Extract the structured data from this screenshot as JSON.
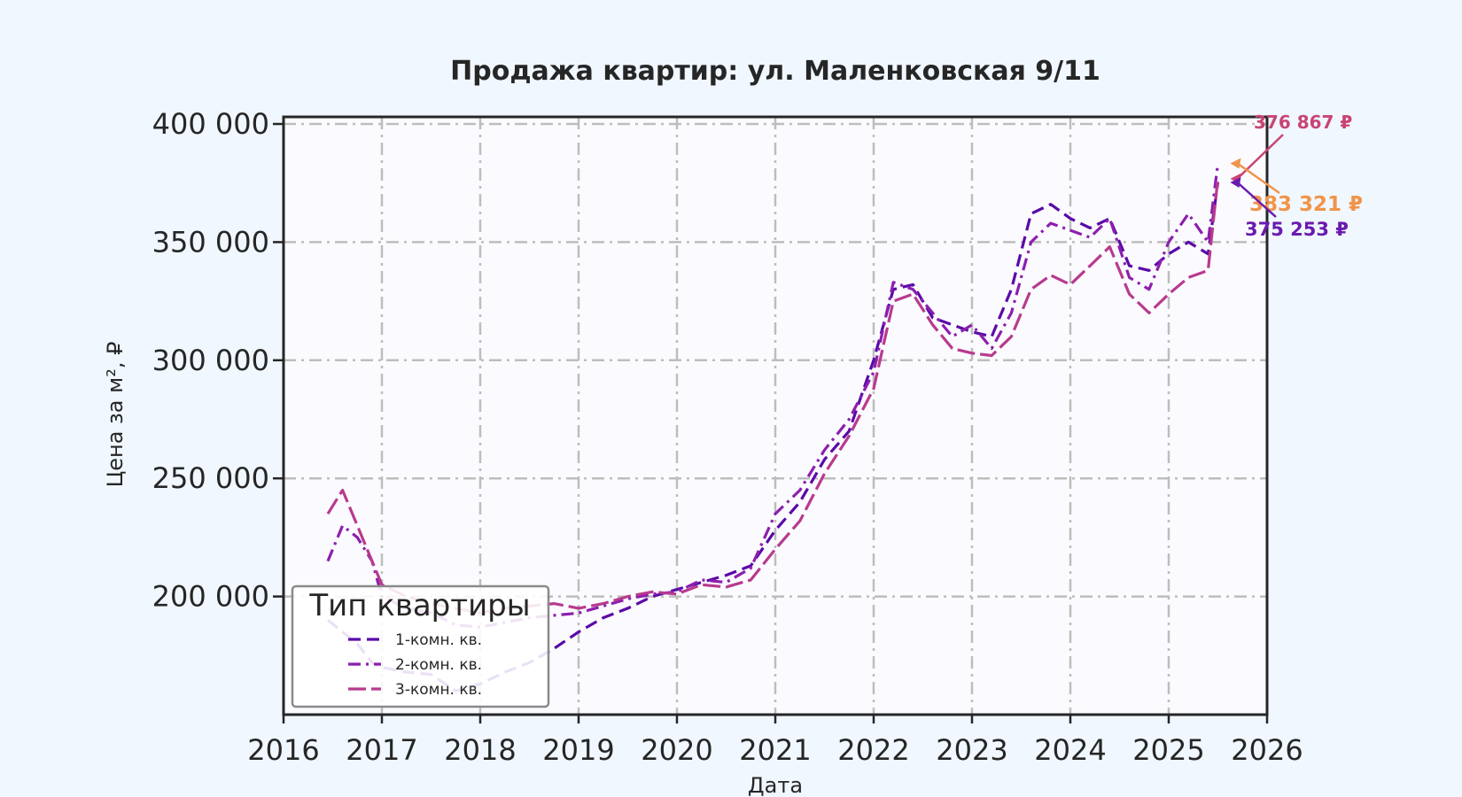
{
  "chart_data": {
    "type": "line",
    "title": "Продажа квартир: ул. Маленковская 9/11",
    "xlabel": "Дата",
    "ylabel": "Цена за м², ₽",
    "x_ticks": [
      "2016",
      "2017",
      "2018",
      "2019",
      "2020",
      "2021",
      "2022",
      "2023",
      "2024",
      "2025",
      "2026"
    ],
    "y_ticks": [
      "200 000",
      "250 000",
      "300 000",
      "350 000",
      "400 000"
    ],
    "y_tick_values": [
      200000,
      250000,
      300000,
      350000,
      400000
    ],
    "xlim": [
      2016.0,
      2026.0
    ],
    "ylim": [
      150000,
      403000
    ],
    "grid": true,
    "legend_title": "Тип квартиры",
    "legend_position": "lower-left",
    "x": [
      2016.45,
      2016.6,
      2016.75,
      2016.9,
      2017.0,
      2017.25,
      2017.5,
      2017.75,
      2018.0,
      2018.25,
      2018.5,
      2018.75,
      2019.0,
      2019.25,
      2019.5,
      2019.75,
      2020.0,
      2020.25,
      2020.5,
      2020.75,
      2021.0,
      2021.25,
      2021.5,
      2021.75,
      2022.0,
      2022.2,
      2022.4,
      2022.6,
      2022.8,
      2023.0,
      2023.2,
      2023.4,
      2023.6,
      2023.8,
      2024.0,
      2024.2,
      2024.4,
      2024.6,
      2024.8,
      2025.0,
      2025.2,
      2025.4,
      2025.5
    ],
    "series": [
      {
        "name": "1-комн. кв.",
        "color": "#5a0aa8",
        "dash": "dashed",
        "values": [
          190000,
          185000,
          180000,
          172000,
          170000,
          168000,
          167000,
          160000,
          163000,
          168000,
          172000,
          178000,
          185000,
          191000,
          195000,
          200000,
          203000,
          206000,
          209000,
          213000,
          228000,
          240000,
          258000,
          270000,
          300000,
          330000,
          332000,
          318000,
          315000,
          312000,
          310000,
          330000,
          362000,
          366000,
          360000,
          356000,
          360000,
          340000,
          338000,
          345000,
          350000,
          345000,
          375253
        ]
      },
      {
        "name": "2-комн. кв.",
        "color": "#8c1fad",
        "dash": "dashdot",
        "values": [
          215000,
          230000,
          225000,
          215000,
          200000,
          195000,
          193000,
          188000,
          187000,
          189000,
          191000,
          192000,
          193000,
          196000,
          199000,
          201000,
          202000,
          207000,
          206000,
          212000,
          235000,
          245000,
          262000,
          275000,
          295000,
          333000,
          330000,
          320000,
          310000,
          315000,
          305000,
          320000,
          350000,
          358000,
          355000,
          352000,
          360000,
          335000,
          330000,
          350000,
          362000,
          350000,
          383321
        ]
      },
      {
        "name": "3-комн. кв.",
        "color": "#b83a8e",
        "dash": "longdash",
        "values": [
          235000,
          245000,
          230000,
          215000,
          205000,
          200000,
          197000,
          195000,
          193000,
          195000,
          196000,
          197000,
          195000,
          197000,
          200000,
          202000,
          201000,
          205000,
          204000,
          207000,
          220000,
          232000,
          252000,
          268000,
          288000,
          325000,
          328000,
          315000,
          305000,
          303000,
          302000,
          310000,
          330000,
          336000,
          332000,
          340000,
          348000,
          328000,
          320000,
          328000,
          335000,
          338000,
          376867
        ]
      }
    ],
    "annotations": [
      {
        "text": "376 867 ₽",
        "series": "3-комн. кв.",
        "color": "#c84474"
      },
      {
        "text": "383 321 ₽",
        "series": "2-комн. кв.",
        "color": "#f0944a"
      },
      {
        "text": "375 253 ₽",
        "series": "1-комн. кв.",
        "color": "#6a1ab0"
      }
    ]
  }
}
